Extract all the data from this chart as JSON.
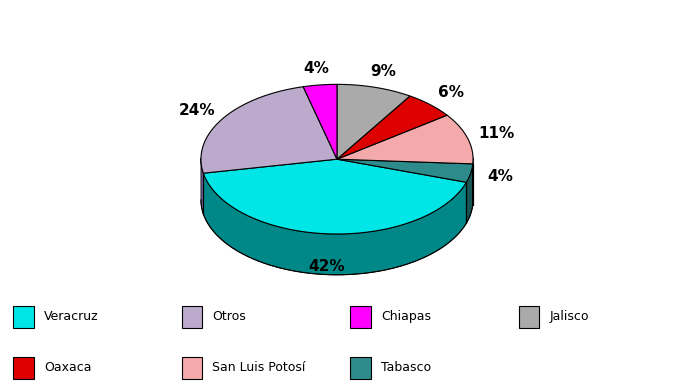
{
  "plot_labels": [
    "Jalisco",
    "Oaxaca",
    "San Luis Potosí",
    "Tabasco",
    "Veracruz",
    "Otros",
    "Chiapas"
  ],
  "plot_values": [
    9,
    6,
    11,
    4,
    42,
    24,
    4
  ],
  "plot_colors": [
    "#AAAAAA",
    "#DD0000",
    "#F4AAAA",
    "#2E8B8B",
    "#00E5E5",
    "#BBAACC",
    "#FF00FF"
  ],
  "side_colors": [
    "#666666",
    "#880000",
    "#AA7777",
    "#1A5555",
    "#008888",
    "#7766AA",
    "#AA00AA"
  ],
  "legend_items": [
    {
      "label": "Veracruz",
      "color": "#00E5E5"
    },
    {
      "label": "Otros",
      "color": "#BBAACC"
    },
    {
      "label": "Chiapas",
      "color": "#FF00FF"
    },
    {
      "label": "Jalisco",
      "color": "#AAAAAA"
    },
    {
      "label": "Oaxaca",
      "color": "#DD0000"
    },
    {
      "label": "San Luis Potosí",
      "color": "#F4AAAA"
    },
    {
      "label": "Tabasco",
      "color": "#2E8B8B"
    }
  ],
  "pct_labels": [
    "9%",
    "6%",
    "11%",
    "4%",
    "42%",
    "24%",
    "4%"
  ],
  "background_color": "#FFFFFF",
  "figsize": [
    6.74,
    3.9
  ],
  "dpi": 100
}
